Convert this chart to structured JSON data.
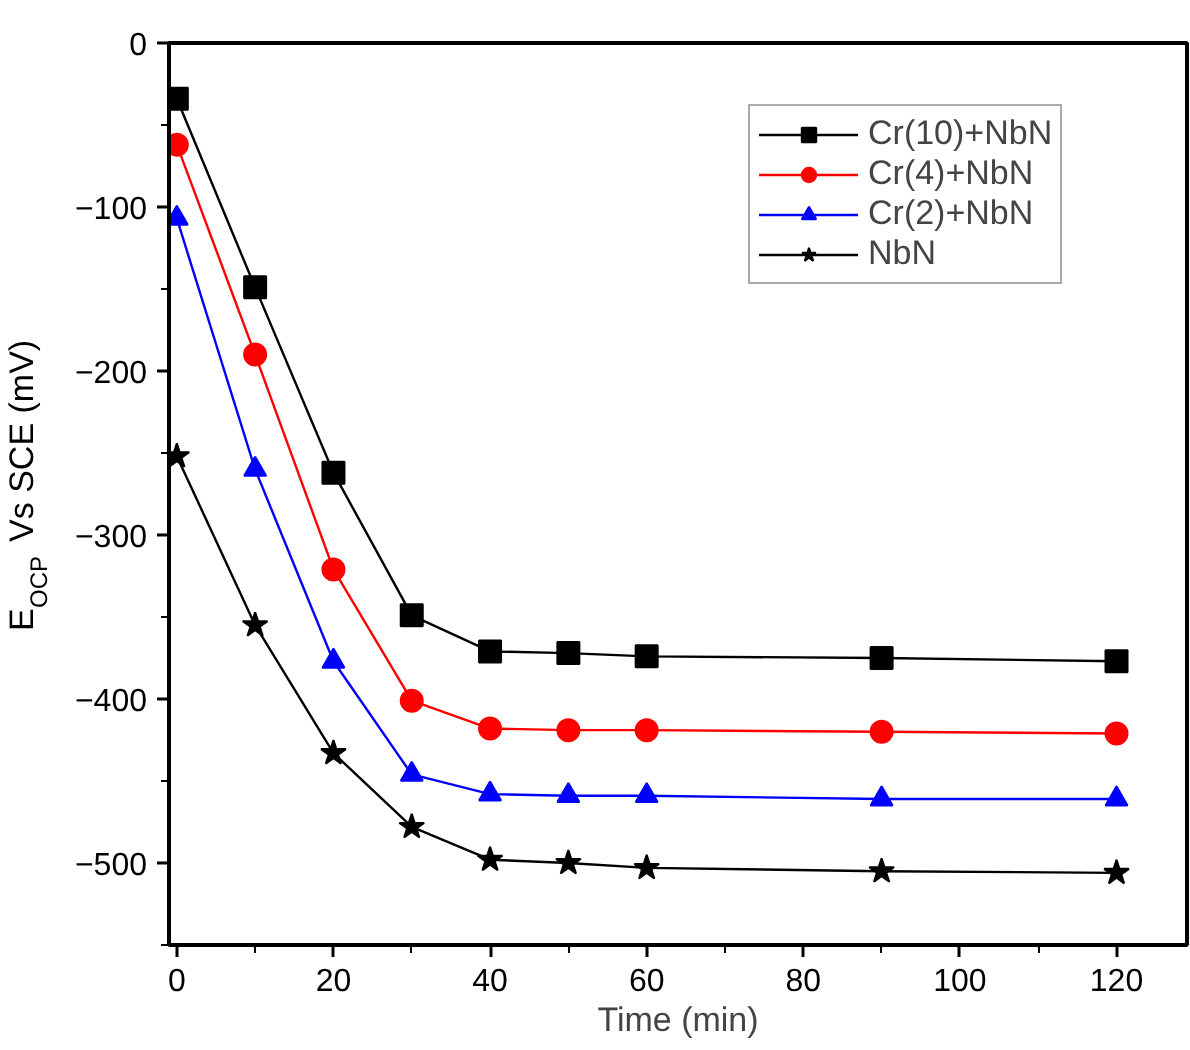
{
  "chart_data": {
    "type": "line",
    "xlabel": "Time (min)",
    "ylabel": "E$_{OCP}$ Vs SCE (mV)",
    "x": [
      0,
      10,
      20,
      30,
      40,
      50,
      60,
      90,
      120
    ],
    "series": [
      {
        "name": "Cr(10)+NbN",
        "color": "#000000",
        "marker": "square",
        "values": [
          -34,
          -149,
          -262,
          -349,
          -371,
          -372,
          -374,
          -375,
          -377
        ]
      },
      {
        "name": "Cr(4)+NbN",
        "color": "#ff0000",
        "marker": "circle",
        "values": [
          -62,
          -190,
          -321,
          -401,
          -418,
          -419,
          -419,
          -420,
          -421
        ]
      },
      {
        "name": "Cr(2)+NbN",
        "color": "#0000ff",
        "marker": "triangle",
        "values": [
          -107,
          -260,
          -377,
          -446,
          -458,
          -459,
          -459,
          -461,
          -461
        ]
      },
      {
        "name": "NbN",
        "color": "#000000",
        "marker": "star",
        "values": [
          -252,
          -355,
          -433,
          -478,
          -498,
          -500,
          -503,
          -505,
          -506
        ]
      }
    ],
    "xlim": [
      -1,
      129
    ],
    "ylim": [
      -550,
      0
    ],
    "xticks": [
      0,
      20,
      40,
      60,
      80,
      100,
      120
    ],
    "yticks": [
      0,
      -100,
      -200,
      -300,
      -400,
      -500
    ],
    "grid": false,
    "legend": "top right",
    "line_style": "solid"
  }
}
